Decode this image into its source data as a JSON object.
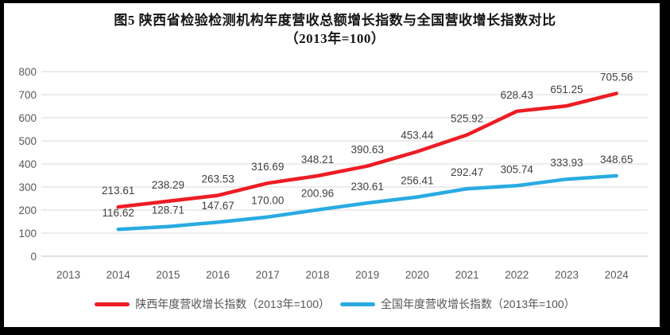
{
  "title": {
    "line1": "图5  陕西省检验检测机构年度营收总额增长指数与全国营收增长指数对比",
    "line2": "（2013年=100）"
  },
  "chart_data": {
    "type": "line",
    "title": "图5 陕西省检验检测机构年度营收总额增长指数与全国营收增长指数对比（2013年=100）",
    "categories": [
      "2013",
      "2014",
      "2015",
      "2016",
      "2017",
      "2018",
      "2019",
      "2020",
      "2021",
      "2022",
      "2023",
      "2024"
    ],
    "series": [
      {
        "name": "陕西年度营收增长指数（2013年=100）",
        "color": "#ed1c24",
        "values": [
          null,
          213.61,
          238.29,
          263.53,
          316.69,
          348.21,
          390.63,
          453.44,
          525.92,
          628.43,
          651.25,
          705.56
        ]
      },
      {
        "name": "全国年度营收增长指数（2013年=100）",
        "color": "#29abe2",
        "values": [
          null,
          116.62,
          128.71,
          147.67,
          170.0,
          200.96,
          230.61,
          256.41,
          292.47,
          305.74,
          333.93,
          348.65
        ]
      }
    ],
    "xlabel": "",
    "ylabel": "",
    "ylim": [
      0,
      800
    ],
    "yticks": [
      0,
      100,
      200,
      300,
      400,
      500,
      600,
      700,
      800
    ],
    "grid": true,
    "data_labels": true,
    "label_decimals": 2,
    "legend_position": "bottom"
  },
  "colors": {
    "background": "#ffffff",
    "frame": "#000000",
    "grid": "#d9d9d9",
    "axis_line": "#c6c6c6",
    "axis_text": "#595959",
    "label_text": "#404040",
    "title_text": "#151515"
  }
}
